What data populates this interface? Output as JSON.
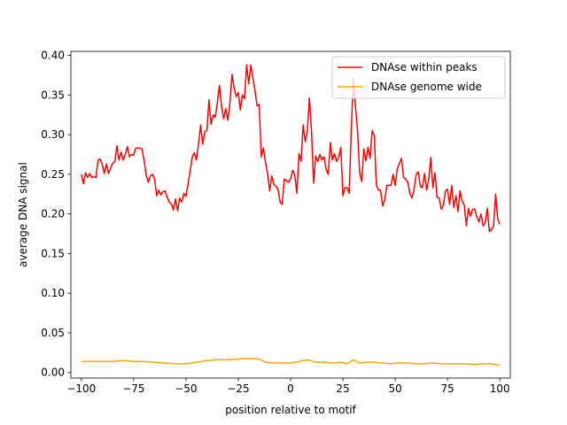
{
  "chart_data": {
    "type": "line",
    "title": "",
    "xlabel": "position relative to motif",
    "ylabel": "average DNA signal",
    "xlim": [
      -105,
      105
    ],
    "ylim": [
      -0.007,
      0.405
    ],
    "xticks": [
      -100,
      -75,
      -50,
      -25,
      0,
      25,
      50,
      75,
      100
    ],
    "xtick_labels": [
      "−100",
      "−75",
      "−50",
      "−25",
      "0",
      "25",
      "50",
      "75",
      "100"
    ],
    "yticks": [
      0.0,
      0.05,
      0.1,
      0.15,
      0.2,
      0.25,
      0.3,
      0.35,
      0.4
    ],
    "ytick_labels": [
      "0.00",
      "0.05",
      "0.10",
      "0.15",
      "0.20",
      "0.25",
      "0.30",
      "0.35",
      "0.40"
    ],
    "grid": false,
    "legend": "top-right",
    "series": [
      {
        "name": "DNAse within peaks",
        "color": "#ff0000",
        "points": [
          [
            -100,
            0.25
          ],
          [
            -99,
            0.238
          ],
          [
            -98,
            0.252
          ],
          [
            -97,
            0.246
          ],
          [
            -96,
            0.251
          ],
          [
            -95,
            0.246
          ],
          [
            -94,
            0.247
          ],
          [
            -93,
            0.246
          ],
          [
            -92,
            0.268
          ],
          [
            -91,
            0.269
          ],
          [
            -90,
            0.262
          ],
          [
            -89,
            0.251
          ],
          [
            -88,
            0.263
          ],
          [
            -87,
            0.251
          ],
          [
            -86,
            0.258
          ],
          [
            -85,
            0.264
          ],
          [
            -84,
            0.266
          ],
          [
            -83,
            0.286
          ],
          [
            -82,
            0.268
          ],
          [
            -81,
            0.278
          ],
          [
            -80,
            0.268
          ],
          [
            -79,
            0.275
          ],
          [
            -78,
            0.285
          ],
          [
            -77,
            0.272
          ],
          [
            -76,
            0.275
          ],
          [
            -75,
            0.274
          ],
          [
            -74,
            0.283
          ],
          [
            -73,
            0.283
          ],
          [
            -72,
            0.283
          ],
          [
            -71,
            0.282
          ],
          [
            -70,
            0.267
          ],
          [
            -69,
            0.249
          ],
          [
            -68,
            0.24
          ],
          [
            -67,
            0.248
          ],
          [
            -66,
            0.25
          ],
          [
            -65,
            0.244
          ],
          [
            -64,
            0.223
          ],
          [
            -63,
            0.23
          ],
          [
            -62,
            0.224
          ],
          [
            -61,
            0.228
          ],
          [
            -60,
            0.229
          ],
          [
            -59,
            0.221
          ],
          [
            -58,
            0.215
          ],
          [
            -57,
            0.213
          ],
          [
            -56,
            0.205
          ],
          [
            -55,
            0.219
          ],
          [
            -54,
            0.204
          ],
          [
            -53,
            0.22
          ],
          [
            -52,
            0.215
          ],
          [
            -51,
            0.226
          ],
          [
            -50,
            0.222
          ],
          [
            -49,
            0.238
          ],
          [
            -48,
            0.254
          ],
          [
            -47,
            0.272
          ],
          [
            -46,
            0.277
          ],
          [
            -45,
            0.268
          ],
          [
            -44,
            0.288
          ],
          [
            -43,
            0.312
          ],
          [
            -42,
            0.288
          ],
          [
            -41,
            0.304
          ],
          [
            -40,
            0.305
          ],
          [
            -39,
            0.344
          ],
          [
            -38,
            0.313
          ],
          [
            -37,
            0.325
          ],
          [
            -36,
            0.322
          ],
          [
            -35,
            0.34
          ],
          [
            -34,
            0.362
          ],
          [
            -33,
            0.336
          ],
          [
            -32,
            0.32
          ],
          [
            -31,
            0.333
          ],
          [
            -30,
            0.318
          ],
          [
            -29,
            0.34
          ],
          [
            -28,
            0.376
          ],
          [
            -27,
            0.359
          ],
          [
            -26,
            0.348
          ],
          [
            -25,
            0.353
          ],
          [
            -24,
            0.331
          ],
          [
            -23,
            0.35
          ],
          [
            -22,
            0.345
          ],
          [
            -21,
            0.388
          ],
          [
            -20,
            0.364
          ],
          [
            -19,
            0.388
          ],
          [
            -18,
            0.371
          ],
          [
            -17,
            0.355
          ],
          [
            -16,
            0.336
          ],
          [
            -15,
            0.338
          ],
          [
            -14,
            0.272
          ],
          [
            -13,
            0.283
          ],
          [
            -12,
            0.265
          ],
          [
            -11,
            0.251
          ],
          [
            -10,
            0.229
          ],
          [
            -9,
            0.248
          ],
          [
            -8,
            0.237
          ],
          [
            -7,
            0.235
          ],
          [
            -6,
            0.231
          ],
          [
            -5,
            0.215
          ],
          [
            -4,
            0.212
          ],
          [
            -3,
            0.244
          ],
          [
            -2,
            0.242
          ],
          [
            -1,
            0.24
          ],
          [
            0,
            0.244
          ],
          [
            1,
            0.255
          ],
          [
            2,
            0.249
          ],
          [
            3,
            0.226
          ],
          [
            4,
            0.276
          ],
          [
            5,
            0.266
          ],
          [
            6,
            0.312
          ],
          [
            7,
            0.291
          ],
          [
            8,
            0.305
          ],
          [
            9,
            0.346
          ],
          [
            10,
            0.304
          ],
          [
            11,
            0.239
          ],
          [
            12,
            0.273
          ],
          [
            13,
            0.266
          ],
          [
            14,
            0.275
          ],
          [
            15,
            0.268
          ],
          [
            16,
            0.272
          ],
          [
            17,
            0.256
          ],
          [
            18,
            0.25
          ],
          [
            19,
            0.29
          ],
          [
            20,
            0.268
          ],
          [
            21,
            0.276
          ],
          [
            22,
            0.266
          ],
          [
            23,
            0.272
          ],
          [
            24,
            0.284
          ],
          [
            25,
            0.223
          ],
          [
            26,
            0.233
          ],
          [
            27,
            0.233
          ],
          [
            28,
            0.226
          ],
          [
            29,
            0.305
          ],
          [
            30,
            0.371
          ],
          [
            31,
            0.336
          ],
          [
            32,
            0.305
          ],
          [
            33,
            0.252
          ],
          [
            34,
            0.241
          ],
          [
            35,
            0.282
          ],
          [
            36,
            0.267
          ],
          [
            37,
            0.284
          ],
          [
            38,
            0.27
          ],
          [
            39,
            0.305
          ],
          [
            40,
            0.299
          ],
          [
            41,
            0.236
          ],
          [
            42,
            0.23
          ],
          [
            43,
            0.23
          ],
          [
            44,
            0.21
          ],
          [
            45,
            0.218
          ],
          [
            46,
            0.236
          ],
          [
            47,
            0.236
          ],
          [
            48,
            0.236
          ],
          [
            49,
            0.25
          ],
          [
            50,
            0.236
          ],
          [
            51,
            0.257
          ],
          [
            52,
            0.264
          ],
          [
            53,
            0.27
          ],
          [
            54,
            0.246
          ],
          [
            55,
            0.244
          ],
          [
            56,
            0.24
          ],
          [
            57,
            0.226
          ],
          [
            58,
            0.22
          ],
          [
            59,
            0.231
          ],
          [
            60,
            0.25
          ],
          [
            61,
            0.253
          ],
          [
            62,
            0.235
          ],
          [
            63,
            0.233
          ],
          [
            64,
            0.251
          ],
          [
            65,
            0.23
          ],
          [
            66,
            0.243
          ],
          [
            67,
            0.271
          ],
          [
            68,
            0.233
          ],
          [
            69,
            0.252
          ],
          [
            70,
            0.221
          ],
          [
            71,
            0.22
          ],
          [
            72,
            0.206
          ],
          [
            73,
            0.211
          ],
          [
            74,
            0.229
          ],
          [
            75,
            0.231
          ],
          [
            76,
            0.212
          ],
          [
            77,
            0.236
          ],
          [
            78,
            0.208
          ],
          [
            79,
            0.223
          ],
          [
            80,
            0.203
          ],
          [
            81,
            0.229
          ],
          [
            82,
            0.216
          ],
          [
            83,
            0.211
          ],
          [
            84,
            0.185
          ],
          [
            85,
            0.207
          ],
          [
            86,
            0.197
          ],
          [
            87,
            0.206
          ],
          [
            88,
            0.206
          ],
          [
            89,
            0.196
          ],
          [
            90,
            0.19
          ],
          [
            91,
            0.2
          ],
          [
            92,
            0.185
          ],
          [
            93,
            0.189
          ],
          [
            94,
            0.207
          ],
          [
            95,
            0.178
          ],
          [
            96,
            0.18
          ],
          [
            97,
            0.185
          ],
          [
            98,
            0.225
          ],
          [
            99,
            0.193
          ],
          [
            100,
            0.187
          ]
        ]
      },
      {
        "name": "DNAse genome wide",
        "color": "#ffa500",
        "points": [
          [
            -100,
            0.014
          ],
          [
            -95,
            0.014
          ],
          [
            -90,
            0.014
          ],
          [
            -85,
            0.014
          ],
          [
            -80,
            0.015
          ],
          [
            -75,
            0.014
          ],
          [
            -70,
            0.014
          ],
          [
            -65,
            0.013
          ],
          [
            -60,
            0.012
          ],
          [
            -55,
            0.011
          ],
          [
            -50,
            0.011
          ],
          [
            -45,
            0.013
          ],
          [
            -40,
            0.015
          ],
          [
            -35,
            0.016
          ],
          [
            -30,
            0.016
          ],
          [
            -25,
            0.017
          ],
          [
            -20,
            0.018
          ],
          [
            -15,
            0.017
          ],
          [
            -12,
            0.013
          ],
          [
            -8,
            0.012
          ],
          [
            -4,
            0.012
          ],
          [
            0,
            0.012
          ],
          [
            4,
            0.014
          ],
          [
            8,
            0.016
          ],
          [
            12,
            0.013
          ],
          [
            16,
            0.013
          ],
          [
            20,
            0.012
          ],
          [
            24,
            0.013
          ],
          [
            27,
            0.011
          ],
          [
            30,
            0.016
          ],
          [
            33,
            0.012
          ],
          [
            36,
            0.013
          ],
          [
            40,
            0.013
          ],
          [
            44,
            0.012
          ],
          [
            48,
            0.011
          ],
          [
            52,
            0.012
          ],
          [
            56,
            0.012
          ],
          [
            60,
            0.011
          ],
          [
            64,
            0.011
          ],
          [
            68,
            0.012
          ],
          [
            72,
            0.011
          ],
          [
            76,
            0.011
          ],
          [
            80,
            0.011
          ],
          [
            84,
            0.011
          ],
          [
            88,
            0.01
          ],
          [
            92,
            0.011
          ],
          [
            96,
            0.011
          ],
          [
            100,
            0.009
          ]
        ]
      }
    ]
  }
}
